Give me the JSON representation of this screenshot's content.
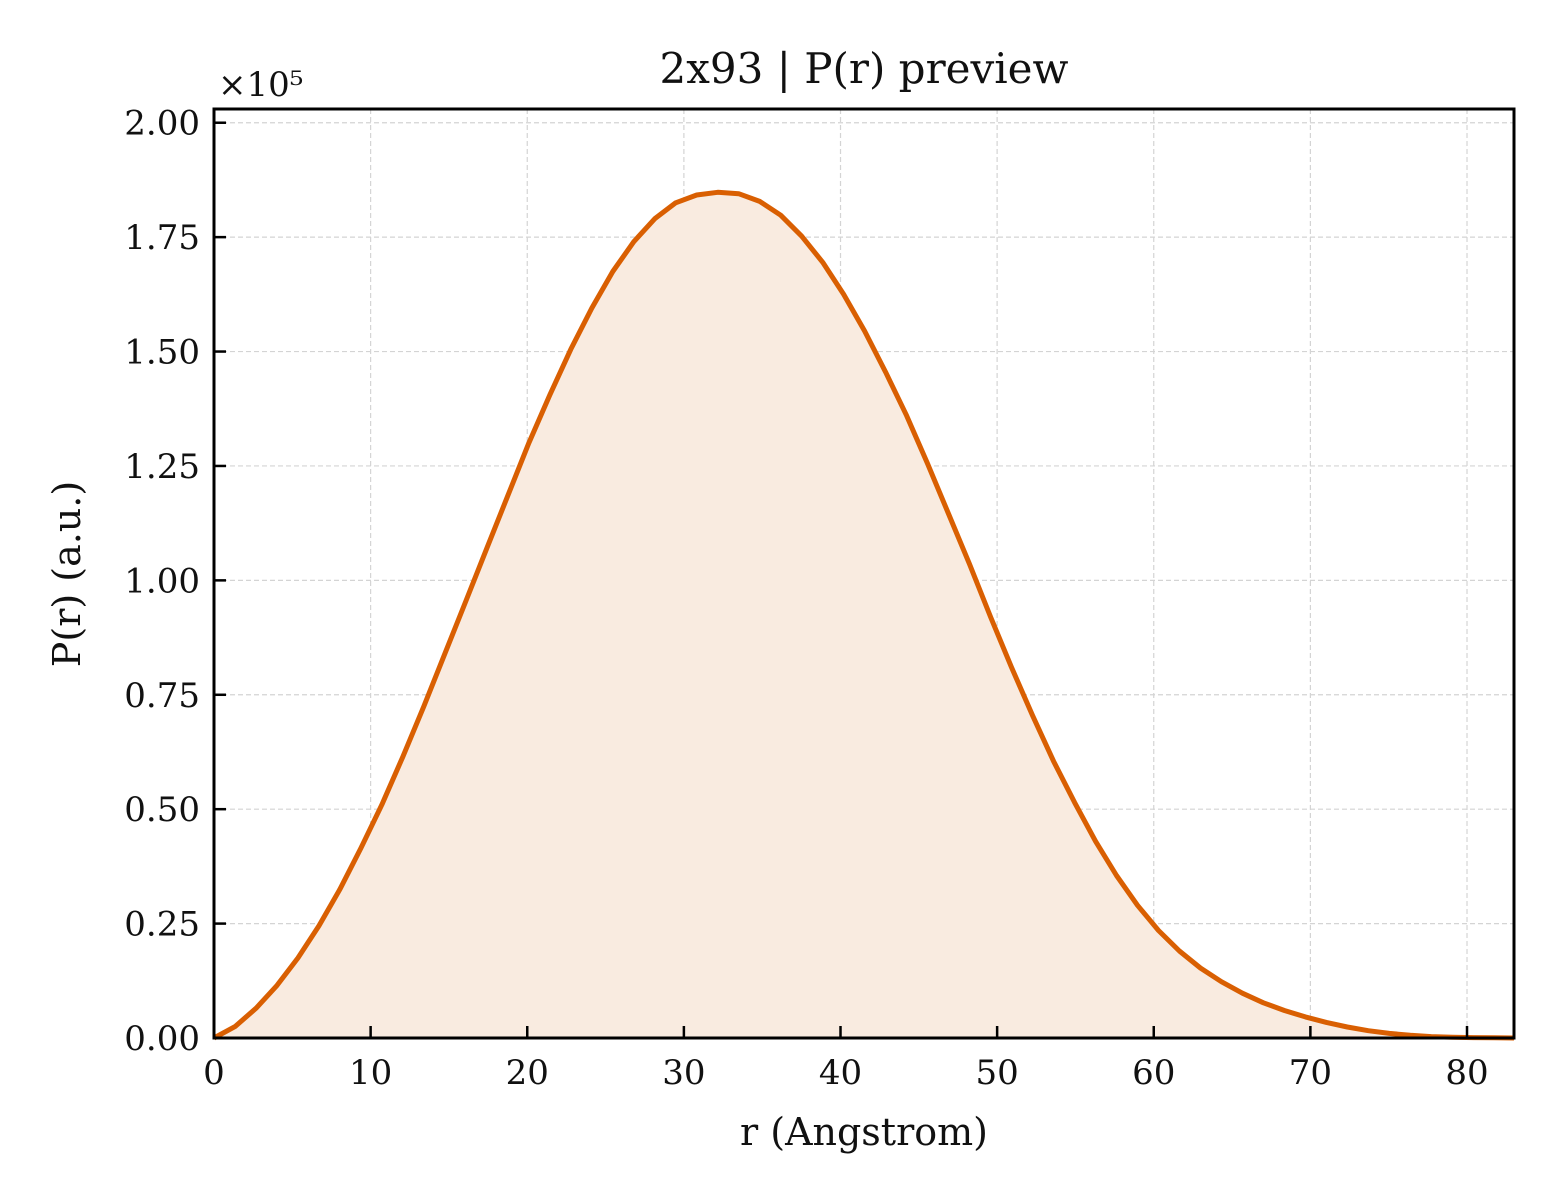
{
  "chart_data": {
    "type": "area",
    "title": "2x93 | P(r) preview",
    "xlabel": "r (Angstrom)",
    "ylabel": "P(r) (a.u.)",
    "y_multiplier_label": "×10⁵",
    "y_scale_factor": 100000,
    "xlim": [
      0,
      83
    ],
    "ylim": [
      0,
      203000
    ],
    "x_ticks": [
      0,
      10,
      20,
      30,
      40,
      50,
      60,
      70,
      80
    ],
    "x_tick_labels": [
      "0",
      "10",
      "20",
      "30",
      "40",
      "50",
      "60",
      "70",
      "80"
    ],
    "y_ticks": [
      0,
      25000,
      50000,
      75000,
      100000,
      125000,
      150000,
      175000,
      200000
    ],
    "y_tick_labels": [
      "0.00",
      "0.25",
      "0.50",
      "0.75",
      "1.00",
      "1.25",
      "1.50",
      "1.75",
      "2.00"
    ],
    "grid": true,
    "line_color": "#d95f02",
    "fill_color": "#f9ebe0",
    "series": [
      {
        "x": [
          0,
          1.34,
          2.68,
          4.02,
          5.36,
          6.7,
          8.04,
          9.38,
          10.72,
          12.06,
          13.4,
          14.74,
          16.08,
          17.42,
          18.76,
          20.1,
          21.44,
          22.78,
          24.12,
          25.46,
          26.8,
          28.14,
          29.48,
          30.82,
          32.16,
          33.5,
          34.84,
          36.18,
          37.52,
          38.86,
          40.2,
          41.54,
          42.88,
          44.22,
          45.56,
          46.9,
          48.24,
          49.58,
          50.92,
          52.26,
          53.6,
          54.94,
          56.28,
          57.62,
          58.96,
          60.3,
          61.64,
          62.98,
          64.32,
          65.66,
          67.0,
          68.34,
          69.68,
          71.02,
          72.36,
          73.7,
          75.04,
          76.38,
          77.72,
          79.06,
          80.4,
          81.74,
          83.0
        ],
        "y": [
          0,
          2500,
          6500,
          11500,
          17500,
          24500,
          32500,
          41500,
          51000,
          61500,
          72500,
          84000,
          95500,
          107000,
          118500,
          130000,
          140500,
          150500,
          159500,
          167500,
          174000,
          179000,
          182500,
          184200,
          184800,
          184500,
          182800,
          179800,
          175200,
          169500,
          162500,
          154500,
          145500,
          136000,
          125500,
          114500,
          103500,
          92000,
          81000,
          70500,
          60500,
          51500,
          43000,
          35500,
          29000,
          23500,
          19000,
          15300,
          12300,
          9800,
          7700,
          6000,
          4600,
          3400,
          2400,
          1600,
          1000,
          600,
          300,
          150,
          80,
          50,
          0
        ]
      }
    ]
  }
}
